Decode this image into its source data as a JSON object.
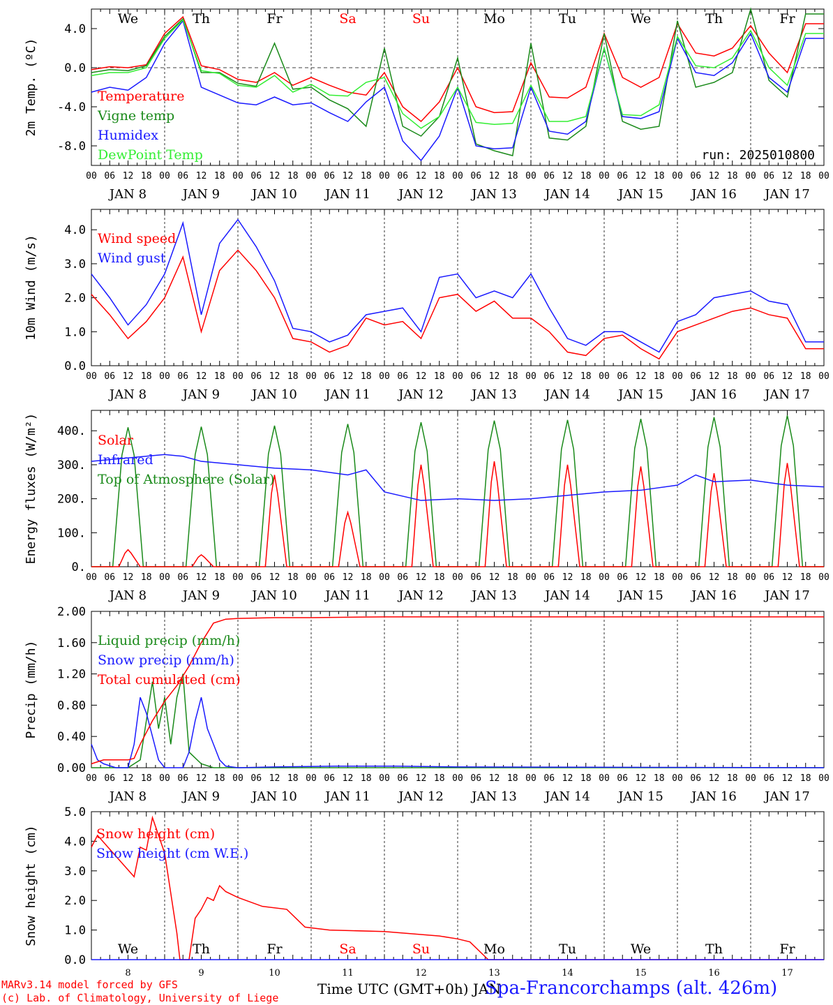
{
  "colors": {
    "red": "#ff0000",
    "green": "#1a8a1a",
    "blue": "#1a1aff",
    "lightgreen": "#33ee33",
    "black": "#000000",
    "weekend": "#ff0000"
  },
  "x_tick_hours": [
    "00",
    "06",
    "12",
    "18"
  ],
  "date_labels": [
    "JAN  8",
    "JAN  9",
    "JAN 10",
    "JAN 11",
    "JAN 12",
    "JAN 13",
    "JAN 14",
    "JAN 15",
    "JAN 16",
    "JAN 17"
  ],
  "weekdays": [
    "We",
    "Th",
    "Fr",
    "Sa",
    "Su",
    "Mo",
    "Tu",
    "We",
    "Th",
    "Fr"
  ],
  "weekend_flags": [
    false,
    false,
    false,
    true,
    true,
    false,
    false,
    false,
    false,
    false
  ],
  "bottom_day_numbers": [
    "8",
    "9",
    "10",
    "11",
    "12",
    "13",
    "14",
    "15",
    "16",
    "17"
  ],
  "run_label": "run: 2025010800",
  "footer": {
    "model": "MARv3.14 model forced by GFS",
    "credit": "(c) Lab. of Climatology, University of Liege",
    "xlabel": "Time UTC (GMT+0h) JAN",
    "station": "Spa-Francorchamps (alt. 426m)"
  },
  "chart_data": [
    {
      "type": "line",
      "ylabel": "2m Temp. (ºC)",
      "ylim": [
        -10,
        6
      ],
      "yticks": [
        4,
        0,
        -4,
        -8
      ],
      "ytick_labels": [
        "4.0",
        "0.0",
        "-4.0",
        "-8.0"
      ],
      "zero_line": true,
      "grid": "dotted day separators",
      "x": [
        0,
        6,
        12,
        18,
        24,
        30,
        36,
        42,
        48,
        54,
        60,
        66,
        72,
        78,
        84,
        90,
        96,
        102,
        108,
        114,
        120,
        126,
        132,
        138,
        144,
        150,
        156,
        162,
        168,
        174,
        180,
        186,
        192,
        198,
        204,
        210,
        216,
        222,
        228,
        234
      ],
      "series": [
        {
          "name": "Temperature",
          "color": "red",
          "values": [
            -0.2,
            0.1,
            0.0,
            0.3,
            3.5,
            5.2,
            0.2,
            -0.2,
            -1.2,
            -1.5,
            -0.5,
            -1.8,
            -1.0,
            -1.8,
            -2.5,
            -2.8,
            -0.5,
            -4.0,
            -5.5,
            -3.5,
            0.0,
            -4.0,
            -4.6,
            -4.5,
            0.5,
            -3.0,
            -3.1,
            -2.0,
            3.5,
            -1.0,
            -2.0,
            -1.0,
            4.5,
            1.5,
            1.2,
            2.0,
            4.3,
            1.5,
            -0.5,
            4.5
          ]
        },
        {
          "name": "Vigne temp",
          "color": "green",
          "values": [
            -0.5,
            -0.2,
            -0.3,
            0.2,
            3.2,
            5.0,
            -0.5,
            -0.5,
            -1.6,
            -1.9,
            2.5,
            -2.2,
            -2.0,
            -3.3,
            -4.2,
            -6.0,
            2.0,
            -6.0,
            -7.0,
            -5.0,
            1.0,
            -7.8,
            -8.5,
            -9.0,
            2.5,
            -7.2,
            -7.4,
            -6.0,
            3.5,
            -5.5,
            -6.3,
            -6.0,
            4.8,
            -2.0,
            -1.5,
            -0.5,
            6.0,
            -1.3,
            -3.0,
            5.5
          ]
        },
        {
          "name": "Humidex",
          "color": "blue",
          "values": [
            -2.5,
            -2.0,
            -2.3,
            -1.0,
            2.5,
            4.8,
            -2.0,
            -2.8,
            -3.6,
            -3.8,
            -3.0,
            -3.8,
            -3.6,
            -4.6,
            -5.5,
            -3.5,
            -2.0,
            -7.5,
            -9.5,
            -7.0,
            -2.0,
            -8.0,
            -8.3,
            -8.2,
            -2.0,
            -6.5,
            -6.8,
            -5.5,
            2.0,
            -5.0,
            -5.2,
            -4.5,
            3.0,
            -0.5,
            -0.8,
            0.5,
            3.5,
            -1.0,
            -2.5,
            3.0
          ]
        },
        {
          "name": "DewPoint Temp",
          "color": "lightgreen",
          "values": [
            -0.8,
            -0.5,
            -0.5,
            0.0,
            3.0,
            4.9,
            -0.3,
            -0.6,
            -1.8,
            -2.0,
            -0.8,
            -2.5,
            -1.7,
            -2.8,
            -2.9,
            -1.5,
            -1.0,
            -4.7,
            -6.2,
            -5.0,
            -2.0,
            -5.6,
            -5.8,
            -5.7,
            -1.8,
            -5.5,
            -5.5,
            -5.0,
            2.0,
            -4.8,
            -4.9,
            -3.8,
            3.2,
            0.2,
            0.0,
            1.0,
            3.8,
            0.0,
            -1.8,
            3.5
          ]
        }
      ]
    },
    {
      "type": "line",
      "ylabel": "10m Wind (m/s)",
      "ylim": [
        0,
        4.6
      ],
      "yticks": [
        0,
        1,
        2,
        3,
        4
      ],
      "ytick_labels": [
        "0.0",
        "1.0",
        "2.0",
        "3.0",
        "4.0"
      ],
      "x": [
        0,
        6,
        12,
        18,
        24,
        30,
        36,
        42,
        48,
        54,
        60,
        66,
        72,
        78,
        84,
        90,
        96,
        102,
        108,
        114,
        120,
        126,
        132,
        138,
        144,
        150,
        156,
        162,
        168,
        174,
        180,
        186,
        192,
        198,
        204,
        210,
        216,
        222,
        228,
        234
      ],
      "series": [
        {
          "name": "Wind speed",
          "color": "red",
          "values": [
            2.1,
            1.5,
            0.8,
            1.3,
            2.0,
            3.2,
            1.0,
            2.8,
            3.4,
            2.8,
            2.0,
            0.8,
            0.7,
            0.4,
            0.6,
            1.4,
            1.2,
            1.3,
            0.8,
            2.0,
            2.1,
            1.6,
            1.9,
            1.4,
            1.4,
            1.0,
            0.4,
            0.3,
            0.8,
            0.9,
            0.5,
            0.2,
            1.0,
            1.2,
            1.4,
            1.6,
            1.7,
            1.5,
            1.4,
            0.5
          ]
        },
        {
          "name": "Wind gust",
          "color": "blue",
          "values": [
            2.7,
            2.0,
            1.2,
            1.8,
            2.7,
            4.2,
            1.5,
            3.6,
            4.3,
            3.5,
            2.5,
            1.1,
            1.0,
            0.7,
            0.9,
            1.5,
            1.6,
            1.7,
            1.0,
            2.6,
            2.7,
            2.0,
            2.2,
            2.0,
            2.7,
            1.7,
            0.8,
            0.6,
            1.0,
            1.0,
            0.7,
            0.4,
            1.3,
            1.5,
            2.0,
            2.1,
            2.2,
            1.9,
            1.8,
            0.7
          ]
        }
      ]
    },
    {
      "type": "line",
      "ylabel": "Energy fluxes (W/m²)",
      "ylim": [
        0,
        460
      ],
      "yticks": [
        0,
        100,
        200,
        300,
        400
      ],
      "ytick_labels": [
        "0.",
        "100.",
        "200.",
        "300.",
        "400."
      ],
      "solar_peaks_by_day": [
        50,
        35,
        270,
        160,
        300,
        310,
        300,
        295,
        275,
        305
      ],
      "toa_peaks_by_day": [
        410,
        412,
        415,
        420,
        425,
        430,
        432,
        435,
        440,
        445
      ],
      "infrared": {
        "x": [
          0,
          12,
          24,
          30,
          36,
          48,
          60,
          72,
          84,
          90,
          96,
          108,
          120,
          132,
          144,
          156,
          168,
          180,
          192,
          198,
          204,
          216,
          228,
          240
        ],
        "values": [
          310,
          320,
          330,
          325,
          310,
          300,
          290,
          285,
          270,
          285,
          220,
          195,
          200,
          195,
          200,
          210,
          220,
          225,
          240,
          270,
          250,
          255,
          240,
          235
        ]
      },
      "series": [
        {
          "name": "Solar",
          "color": "red"
        },
        {
          "name": "Infrared",
          "color": "blue"
        },
        {
          "name": "Top of Atmosphere (Solar)",
          "color": "green"
        }
      ]
    },
    {
      "type": "line",
      "ylabel": "Precip (mm/h)",
      "ylim": [
        0,
        2.0
      ],
      "yticks": [
        0,
        0.4,
        0.8,
        1.2,
        1.6,
        2.0
      ],
      "ytick_labels": [
        "0.00",
        "0.40",
        "0.80",
        "1.20",
        "1.60",
        "2.00"
      ],
      "series": [
        {
          "name": "Liquid precip (mm/h)",
          "color": "green",
          "x": [
            0,
            12,
            16,
            18,
            20,
            22,
            24,
            26,
            28,
            30,
            32,
            36,
            40,
            48,
            240
          ],
          "values": [
            0,
            0,
            0.1,
            0.6,
            1.1,
            0.5,
            0.9,
            0.3,
            0.9,
            1.2,
            0.2,
            0.05,
            0,
            0,
            0
          ]
        },
        {
          "name": "Snow precip (mm/h)",
          "color": "blue",
          "x": [
            0,
            2,
            4,
            8,
            12,
            14,
            16,
            18,
            20,
            22,
            24,
            30,
            32,
            34,
            36,
            38,
            40,
            42,
            44,
            48,
            60,
            80,
            100,
            120,
            240
          ],
          "values": [
            0.3,
            0.1,
            0.05,
            0,
            0,
            0.3,
            0.9,
            0.7,
            0.4,
            0.1,
            0,
            0,
            0.2,
            0.6,
            0.9,
            0.5,
            0.3,
            0.1,
            0.02,
            0,
            0.01,
            0.02,
            0.02,
            0.01,
            0
          ]
        },
        {
          "name": "Total cumulated (cm)",
          "color": "red",
          "x": [
            0,
            4,
            12,
            14,
            16,
            20,
            24,
            28,
            32,
            36,
            40,
            44,
            48,
            60,
            72,
            96,
            120,
            240
          ],
          "values": [
            0.05,
            0.1,
            0.1,
            0.12,
            0.3,
            0.6,
            0.85,
            1.05,
            1.3,
            1.6,
            1.85,
            1.9,
            1.91,
            1.92,
            1.92,
            1.93,
            1.93,
            1.93
          ]
        }
      ]
    },
    {
      "type": "line",
      "ylabel": "Snow height (cm)",
      "ylim": [
        0,
        5.0
      ],
      "yticks": [
        0,
        1,
        2,
        3,
        4,
        5
      ],
      "ytick_labels": [
        "0.0",
        "1.0",
        "2.0",
        "3.0",
        "4.0",
        "5.0"
      ],
      "series": [
        {
          "name": "Snow height (cm)",
          "color": "red",
          "x": [
            0,
            2,
            8,
            14,
            16,
            18,
            20,
            22,
            24,
            28,
            29,
            32,
            34,
            36,
            38,
            40,
            42,
            44,
            48,
            56,
            64,
            70,
            78,
            96,
            108,
            114,
            120,
            124,
            130,
            240
          ],
          "values": [
            3.8,
            4.2,
            3.5,
            2.8,
            3.8,
            3.7,
            4.8,
            4.2,
            3.6,
            0.9,
            0,
            0,
            1.4,
            1.7,
            2.1,
            2.0,
            2.5,
            2.3,
            2.1,
            1.8,
            1.7,
            1.1,
            1.0,
            0.95,
            0.85,
            0.8,
            0.7,
            0.6,
            0,
            0
          ]
        },
        {
          "name": "Snow height (cm W.E.)",
          "color": "blue",
          "x": [
            0,
            240
          ],
          "values": [
            0,
            0
          ]
        }
      ]
    }
  ]
}
